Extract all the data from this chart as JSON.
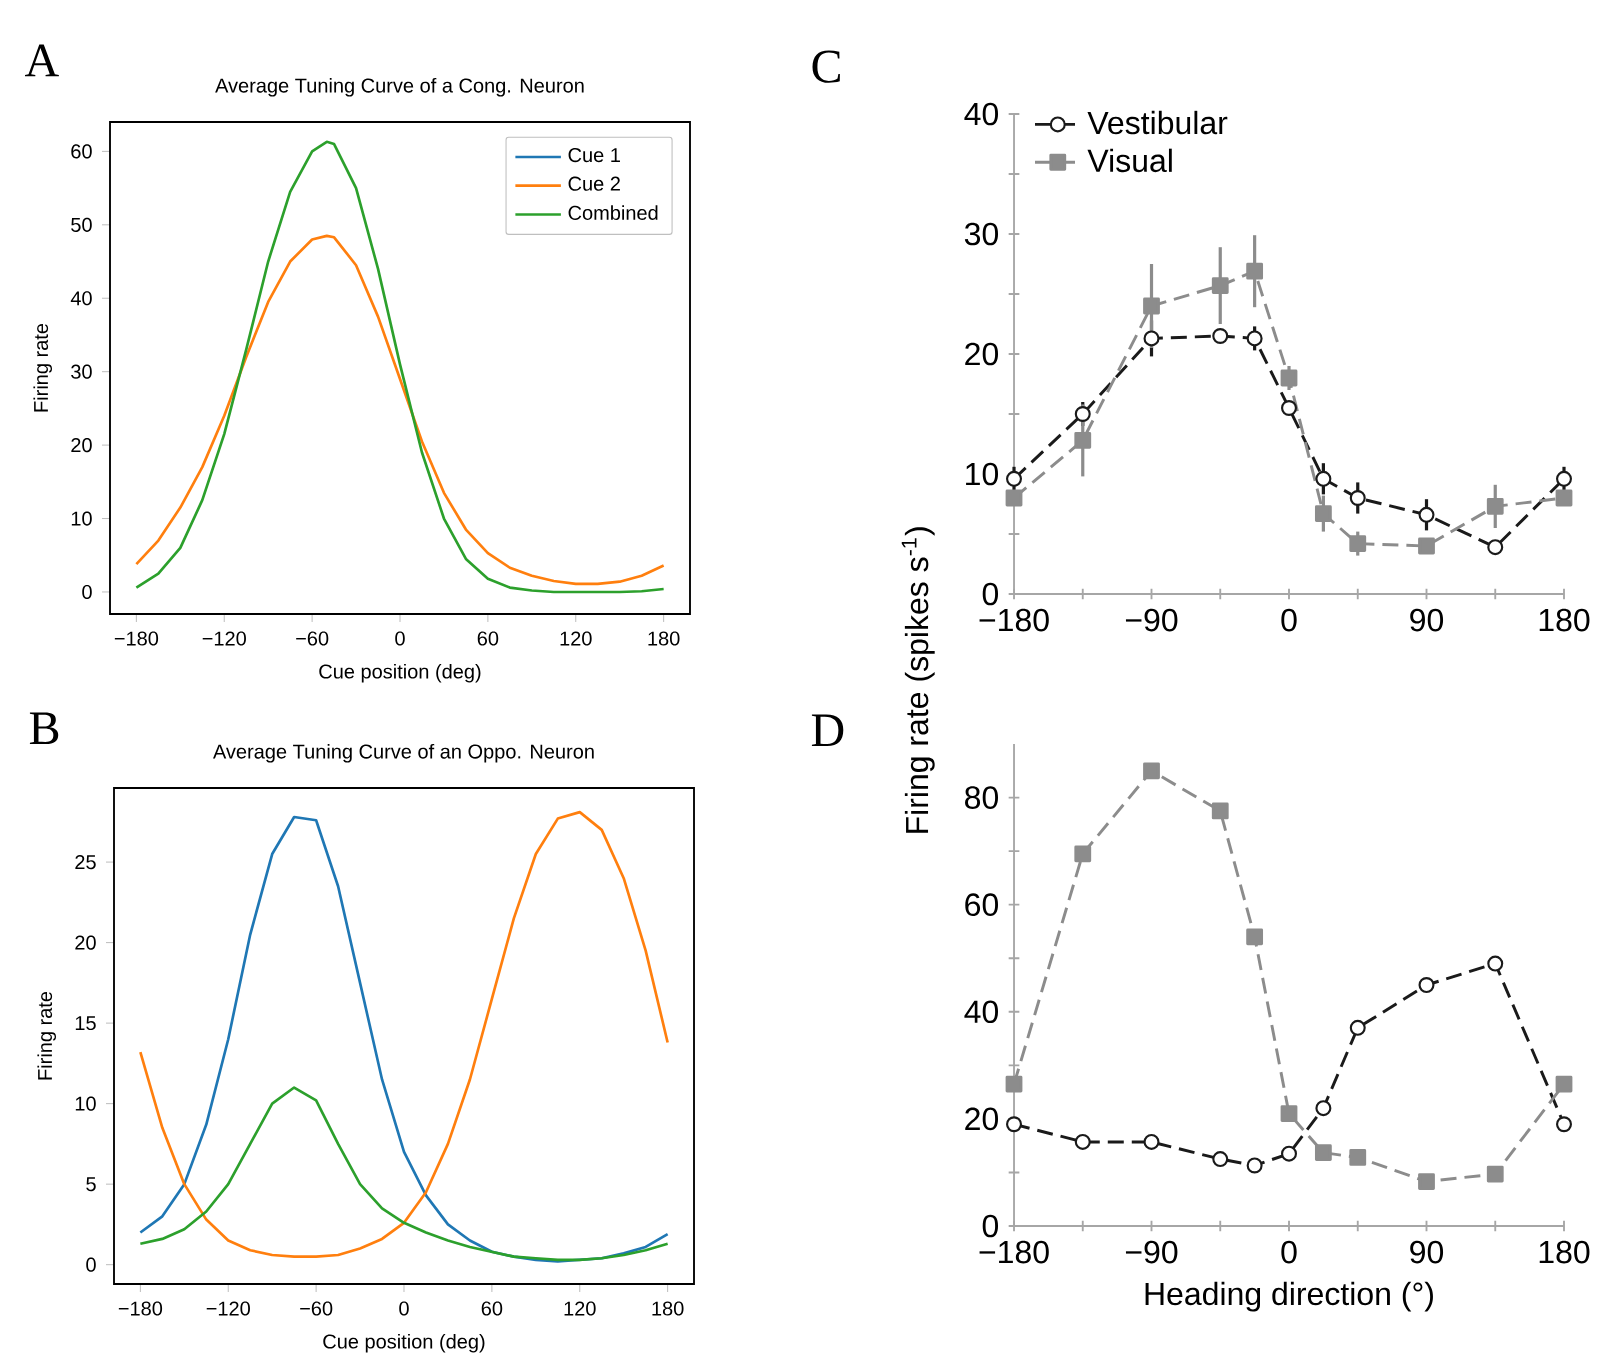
{
  "chart_data": [
    {
      "type": "line",
      "title": "Average Tuning Curve of a Cong. Neuron",
      "xlabel": "Cue position (deg)",
      "ylabel": "Firing rate",
      "annotations": [
        "A"
      ],
      "x": [
        -180,
        -165,
        -150,
        -135,
        -120,
        -105,
        -90,
        -75,
        -60,
        -50,
        -45,
        -30,
        -15,
        0,
        15,
        30,
        45,
        60,
        75,
        90,
        105,
        120,
        135,
        150,
        165,
        180
      ],
      "xlim": [
        -198,
        198
      ],
      "ylim": [
        -3,
        64
      ],
      "xticks": [
        {
          "value": -180,
          "label": "−180"
        },
        {
          "value": -120,
          "label": "−120"
        },
        {
          "value": -60,
          "label": "−60"
        },
        0,
        60,
        120,
        180
      ],
      "yticks": [
        0,
        10,
        20,
        30,
        40,
        50,
        60
      ],
      "legend": "top right",
      "grid": false,
      "series": [
        {
          "name": "Cue 1",
          "color": "#1f77b4",
          "values": [
            null,
            null,
            null,
            null,
            null,
            null,
            null,
            null,
            null,
            null,
            null,
            null,
            null,
            null,
            null,
            null,
            null,
            null,
            null,
            null,
            null,
            null,
            null,
            null,
            null,
            null
          ]
        },
        {
          "name": "Cue 2",
          "color": "#ff7f0e",
          "values": [
            3.8,
            7,
            11.5,
            17,
            24,
            32,
            39.5,
            45,
            48,
            48.5,
            48.3,
            44.5,
            37.5,
            29,
            20.5,
            13.5,
            8.5,
            5.3,
            3.3,
            2.2,
            1.5,
            1.1,
            1.1,
            1.4,
            2.2,
            3.6
          ]
        },
        {
          "name": "Combined",
          "color": "#2ca02c",
          "values": [
            0.6,
            2.5,
            6,
            12.5,
            21.5,
            33,
            45,
            54.5,
            60,
            61.3,
            61,
            55,
            44,
            31,
            19,
            10,
            4.5,
            1.8,
            0.6,
            0.2,
            0,
            0,
            0,
            0,
            0.1,
            0.4
          ]
        }
      ]
    },
    {
      "type": "line",
      "title": "Average Tuning Curve of an Oppo. Neuron",
      "xlabel": "Cue position (deg)",
      "ylabel": "Firing rate",
      "annotations": [
        "B"
      ],
      "x": [
        -180,
        -165,
        -150,
        -135,
        -120,
        -105,
        -90,
        -75,
        -60,
        -45,
        -30,
        -15,
        0,
        15,
        30,
        45,
        60,
        75,
        90,
        105,
        120,
        135,
        150,
        165,
        180
      ],
      "xlim": [
        -198,
        198
      ],
      "ylim": [
        -1.2,
        29.6
      ],
      "xticks": [
        {
          "value": -180,
          "label": "−180"
        },
        {
          "value": -120,
          "label": "−120"
        },
        {
          "value": -60,
          "label": "−60"
        },
        0,
        60,
        120,
        180
      ],
      "yticks": [
        0,
        5,
        10,
        15,
        20,
        25
      ],
      "grid": false,
      "series": [
        {
          "color": "#1f77b4",
          "values": [
            2,
            3,
            5,
            8.7,
            14,
            20.5,
            25.5,
            27.8,
            27.6,
            23.5,
            17.5,
            11.5,
            7,
            4.3,
            2.5,
            1.5,
            0.8,
            0.5,
            0.3,
            0.2,
            0.3,
            0.4,
            0.7,
            1.1,
            1.9
          ]
        },
        {
          "color": "#ff7f0e",
          "values": [
            13.2,
            8.5,
            5,
            2.8,
            1.5,
            0.9,
            0.6,
            0.5,
            0.5,
            0.6,
            1,
            1.6,
            2.6,
            4.5,
            7.5,
            11.5,
            16.5,
            21.5,
            25.5,
            27.7,
            28.1,
            27,
            24,
            19.5,
            13.8
          ]
        },
        {
          "color": "#2ca02c",
          "values": [
            1.3,
            1.6,
            2.2,
            3.3,
            5,
            7.5,
            10,
            11,
            10.2,
            7.5,
            5,
            3.5,
            2.6,
            2,
            1.5,
            1.1,
            0.8,
            0.5,
            0.4,
            0.3,
            0.3,
            0.4,
            0.6,
            0.9,
            1.3
          ]
        }
      ]
    },
    {
      "type": "line",
      "ylabel": "Firing rate (spikes s$^{-1}$)",
      "annotations": [
        "C"
      ],
      "x": [
        -180,
        -135,
        -90,
        -45,
        -22.5,
        0,
        22.5,
        45,
        90,
        135,
        180
      ],
      "xlim": [
        -180,
        180
      ],
      "ylim": [
        0,
        40
      ],
      "xticks": [
        {
          "value": -180,
          "label": "−180"
        },
        {
          "value": -135,
          "label": null
        },
        {
          "value": -90,
          "label": "−90"
        },
        {
          "value": -45,
          "label": null
        },
        0,
        {
          "value": 45,
          "label": null
        },
        90,
        {
          "value": 135,
          "label": null
        },
        180
      ],
      "yticks": [
        0,
        {
          "value": 5,
          "label": null
        },
        10,
        {
          "value": 15,
          "label": null
        },
        20,
        {
          "value": 25,
          "label": null
        },
        30,
        {
          "value": 35,
          "label": null
        },
        40
      ],
      "legend": "top left",
      "grid": false,
      "series": [
        {
          "name": "Vestibular",
          "color": "#1a1a1a",
          "marker": "circle",
          "line_style": "dashed",
          "values": [
            9.6,
            15,
            21.3,
            21.5,
            21.3,
            15.5,
            9.6,
            8,
            6.6,
            3.9,
            9.6
          ],
          "errors": [
            1,
            1,
            1.5,
            null,
            1,
            null,
            1.3,
            1.3,
            1.3,
            null,
            1
          ]
        },
        {
          "name": "Visual",
          "color": "#8c8c8c",
          "marker": "square",
          "line_style": "dashed",
          "values": [
            8,
            12.8,
            24,
            25.7,
            26.9,
            18,
            6.7,
            4.2,
            4,
            7.3,
            8
          ],
          "errors": [
            null,
            3,
            3.5,
            3.2,
            3,
            1,
            1.5,
            1,
            null,
            1.8,
            null
          ]
        }
      ]
    },
    {
      "type": "line",
      "xlabel": "Heading direction (°)",
      "annotations": [
        "D"
      ],
      "x": [
        -180,
        -135,
        -90,
        -45,
        -22.5,
        0,
        22.5,
        45,
        90,
        135,
        180
      ],
      "xlim": [
        -180,
        180
      ],
      "ylim": [
        0,
        90
      ],
      "xticks": [
        {
          "value": -180,
          "label": "−180"
        },
        {
          "value": -135,
          "label": null
        },
        {
          "value": -90,
          "label": "−90"
        },
        {
          "value": -45,
          "label": null
        },
        0,
        {
          "value": 45,
          "label": null
        },
        90,
        {
          "value": 135,
          "label": null
        },
        180
      ],
      "yticks": [
        0,
        {
          "value": 10,
          "label": null
        },
        20,
        {
          "value": 30,
          "label": null
        },
        40,
        {
          "value": 50,
          "label": null
        },
        60,
        {
          "value": 70,
          "label": null
        },
        80
      ],
      "grid": false,
      "series": [
        {
          "color": "#1a1a1a",
          "marker": "circle",
          "line_style": "dashed",
          "values": [
            19,
            15.7,
            15.7,
            12.5,
            11.3,
            13.5,
            22,
            37,
            45,
            49,
            19
          ]
        },
        {
          "color": "#8c8c8c",
          "marker": "square",
          "line_style": "dashed",
          "values": [
            26.5,
            69.5,
            85,
            77.5,
            54,
            21,
            13.7,
            12.8,
            8.3,
            9.7,
            26.5
          ]
        }
      ]
    }
  ]
}
